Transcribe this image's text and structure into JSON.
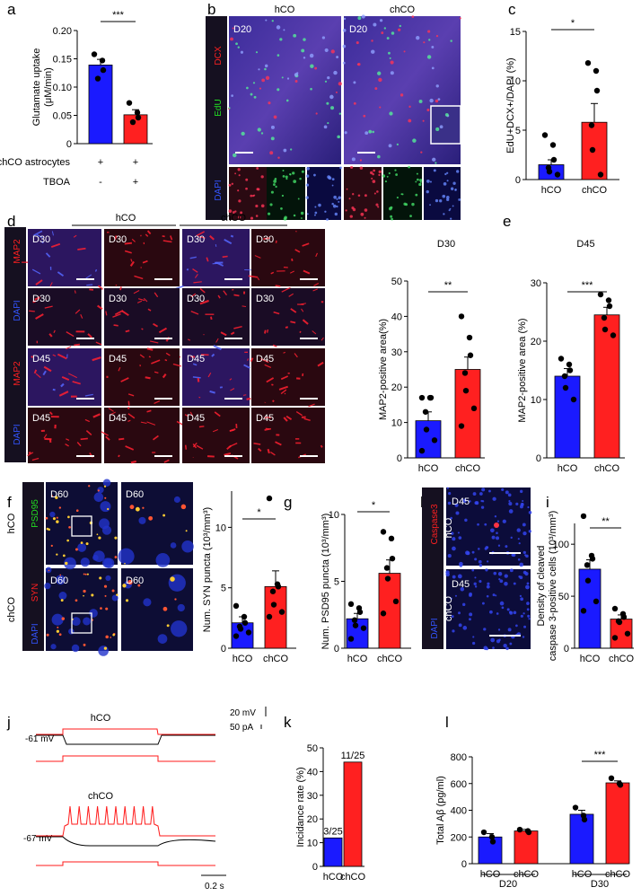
{
  "panel_letters": [
    "a",
    "b",
    "c",
    "d",
    "e",
    "f",
    "g",
    "h",
    "i",
    "j",
    "k",
    "l"
  ],
  "colors": {
    "blue": "#1a1aff",
    "red": "#ff2020",
    "trace_red": "#ff1a1a",
    "trace_black": "#000000"
  },
  "micro": {
    "b": {
      "cols": [
        "hCO",
        "chCO"
      ],
      "day": "D20",
      "stains": [
        "DCX",
        "EdU",
        "DAPI"
      ],
      "stain_colors": [
        "#ff2020",
        "#22dd22",
        "#3355ff"
      ]
    },
    "d": {
      "cols": [
        "hCO",
        "chCO"
      ],
      "stains_top": [
        "MAP2",
        "DAPI"
      ],
      "stains_bottom": [
        "MAP2",
        "DAPI"
      ],
      "day_top": "D30",
      "day_bottom": "D45"
    },
    "f": {
      "rows": [
        "hCO",
        "chCO"
      ],
      "day": "D60",
      "stains": [
        "PSD95",
        "SYN",
        "DAPI"
      ],
      "stain_colors": [
        "#22dd22",
        "#ff2020",
        "#3355ff"
      ]
    },
    "h": {
      "rows": [
        "hCO",
        "chCO"
      ],
      "day": "D45",
      "stains": [
        "Caspase3",
        "DAPI"
      ]
    }
  },
  "panel_e_titles": [
    "D30",
    "D45"
  ],
  "panel_j": {
    "labels": [
      "hCO",
      "chCO"
    ],
    "vrest": [
      "-61 mV",
      "-67 mV"
    ],
    "scale_v": "20 mV",
    "scale_i": "50 pA",
    "scale_t": "0.2 s"
  },
  "chart_data": [
    {
      "panel": "a",
      "type": "bar",
      "categories": [
        "",
        ""
      ],
      "values": [
        0.139,
        0.051
      ],
      "errors": [
        0.01,
        0.009
      ],
      "points": [
        [
          0.158,
          0.147,
          0.13,
          0.115
        ],
        [
          0.072,
          0.055,
          0.046,
          0.038
        ]
      ],
      "ylabel": "Glutamate uptake (μM/min)",
      "ylim": [
        0,
        0.2
      ],
      "yticks": [
        "0",
        "0.05",
        "0.10",
        "0.15",
        "0.20"
      ],
      "significance": "***",
      "table_rows": [
        {
          "label": "chCO astrocytes",
          "values": [
            "+",
            "+"
          ]
        },
        {
          "label": "TBOA",
          "values": [
            "-",
            "+"
          ]
        }
      ]
    },
    {
      "panel": "c",
      "type": "bar",
      "categories": [
        "hCO",
        "chCO"
      ],
      "values": [
        1.5,
        5.8
      ],
      "errors": [
        0.5,
        1.9
      ],
      "points": [
        [
          4.5,
          3.5,
          2.0,
          1.2,
          0.8,
          0.5
        ],
        [
          11.8,
          11.0,
          9.0,
          5.5,
          3.0,
          0.5
        ]
      ],
      "ylabel": "EdU+DCX+/DAPI (%)",
      "ylim": [
        0,
        15
      ],
      "yticks": [
        "0",
        "5",
        "10",
        "15"
      ],
      "significance": "*"
    },
    {
      "panel": "e1",
      "type": "bar",
      "categories": [
        "hCO",
        "chCO"
      ],
      "values": [
        10.5,
        25.0
      ],
      "errors": [
        2.5,
        3.5
      ],
      "points": [
        [
          17,
          17,
          17,
          13,
          8,
          5,
          2
        ],
        [
          40,
          34,
          29,
          24,
          19,
          14,
          9
        ]
      ],
      "ylabel": "MAP2-positive area(%)",
      "ylim": [
        0,
        50
      ],
      "yticks": [
        "0",
        "10",
        "20",
        "30",
        "40",
        "50"
      ],
      "significance": "**",
      "title": "D30"
    },
    {
      "panel": "e2",
      "type": "bar",
      "categories": [
        "hCO",
        "chCO"
      ],
      "values": [
        14.0,
        24.5
      ],
      "errors": [
        1.3,
        1.3
      ],
      "points": [
        [
          17,
          16,
          15,
          14,
          12,
          10
        ],
        [
          28,
          27,
          26,
          24,
          22,
          21
        ]
      ],
      "ylabel": "MAP2-positive area (%)",
      "ylim": [
        0,
        30
      ],
      "yticks": [
        "0",
        "10",
        "20",
        "30"
      ],
      "significance": "***",
      "title": "D45"
    },
    {
      "panel": "g1",
      "type": "bar",
      "categories": [
        "hCO",
        "chCO"
      ],
      "values": [
        2.1,
        5.1
      ],
      "errors": [
        0.5,
        1.3
      ],
      "points": [
        [
          3.5,
          2.6,
          2.1,
          1.8,
          1.6,
          1.3,
          1.0
        ],
        [
          12.4,
          5.3,
          5.1,
          4.7,
          3.6,
          3.0,
          2.6
        ]
      ],
      "ylabel": "Num. SYN puncta (10³/mm³)",
      "ylim": [
        0,
        13
      ],
      "yticks": [
        "0",
        "5",
        "10"
      ],
      "significance": "*"
    },
    {
      "panel": "g2",
      "type": "bar",
      "categories": [
        "hCO",
        "chCO"
      ],
      "values": [
        2.2,
        5.6
      ],
      "errors": [
        0.4,
        1.0
      ],
      "points": [
        [
          3.3,
          3.0,
          2.7,
          2.1,
          1.7,
          1.5,
          0.7
        ],
        [
          8.7,
          8.2,
          6.7,
          6.0,
          5.2,
          3.5,
          2.6
        ]
      ],
      "ylabel": "Num. PSD95 puncta (10³/mm³)",
      "ylim": [
        0,
        10
      ],
      "yticks": [
        "0",
        "5",
        "10"
      ],
      "significance": "*"
    },
    {
      "panel": "i",
      "type": "bar",
      "categories": [
        "hCO",
        "chCO"
      ],
      "values": [
        76,
        28
      ],
      "errors": [
        9,
        4
      ],
      "points": [
        [
          127,
          89,
          86,
          80,
          65,
          45,
          36
        ],
        [
          38,
          33,
          30,
          26,
          25,
          14,
          10
        ]
      ],
      "ylabel": "Density of cleaved caspase 3-positive cells (10³/mm³)",
      "ylim": [
        0,
        120
      ],
      "yticks": [
        "0",
        "50",
        "100"
      ],
      "significance": "**"
    },
    {
      "panel": "k",
      "type": "bar",
      "categories": [
        "hCO",
        "chCO"
      ],
      "values": [
        12,
        44
      ],
      "bar_labels": [
        "3/25",
        "11/25"
      ],
      "ylabel": "Incidance rate (%)",
      "ylim": [
        0,
        50
      ],
      "yticks": [
        "0",
        "10",
        "20",
        "30",
        "40",
        "50"
      ]
    },
    {
      "panel": "l",
      "type": "bar",
      "categories": [
        "hCO",
        "chCO",
        "hCO",
        "chCO"
      ],
      "groups": [
        "D20",
        "D30"
      ],
      "values": [
        200,
        245,
        370,
        605
      ],
      "errors": [
        25,
        12,
        30,
        15
      ],
      "points": [
        [
          235,
          200,
          165
        ],
        [
          255,
          245,
          235
        ],
        [
          420,
          360,
          330
        ],
        [
          640,
          600,
          590
        ]
      ],
      "ylabel": "Total Aβ  (pg/ml)",
      "ylim": [
        0,
        800
      ],
      "yticks": [
        "0",
        "200",
        "400",
        "600",
        "800"
      ],
      "significance": "***"
    }
  ]
}
